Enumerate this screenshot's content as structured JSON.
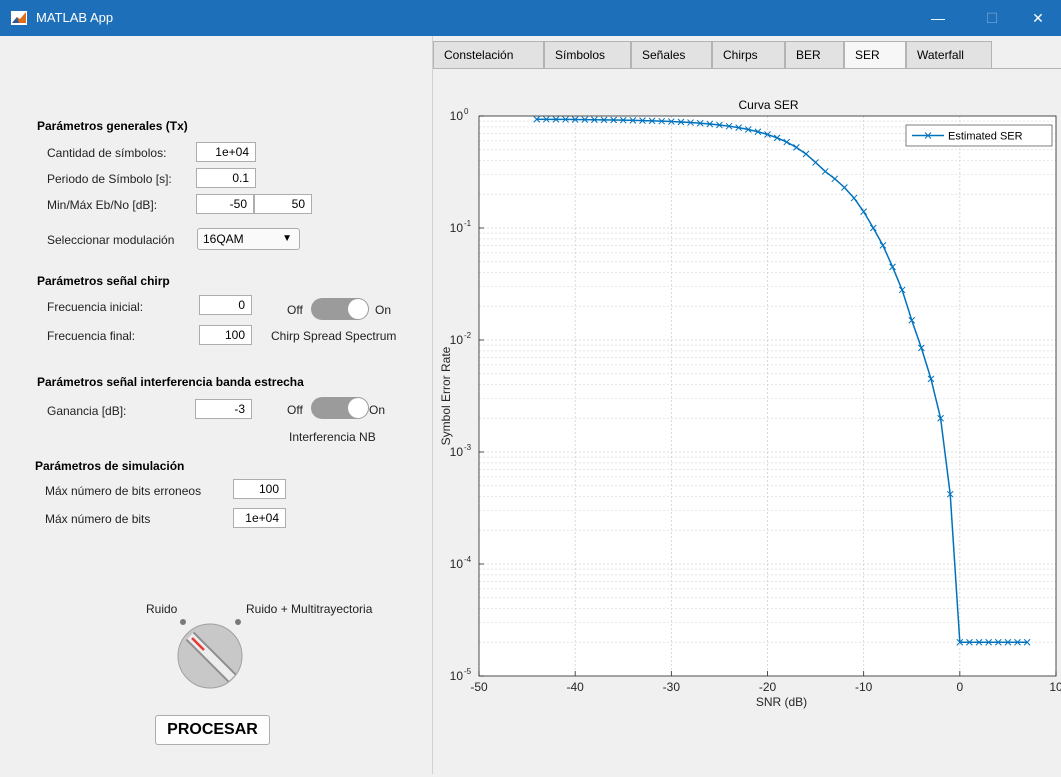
{
  "window": {
    "title": "MATLAB App",
    "minimize_label": "—",
    "maximize_label": "☐",
    "close_label": "✕"
  },
  "general": {
    "heading": "Parámetros generales (Tx)",
    "num_symbols_label": "Cantidad de símbolos:",
    "num_symbols_value": "1e+04",
    "symbol_period_label": "Periodo de Símbolo [s]:",
    "symbol_period_value": "0.1",
    "ebno_label": "Min/Máx Eb/No [dB]:",
    "ebno_min": "-50",
    "ebno_max": "50",
    "modulation_label": "Seleccionar modulación",
    "modulation_value": "16QAM"
  },
  "chirp": {
    "heading": "Parámetros señal chirp",
    "start_freq_label": "Frecuencia inicial:",
    "start_freq_value": "0",
    "end_freq_label": "Frecuencia final:",
    "end_freq_value": "100",
    "switch_off": "Off",
    "switch_on": "On",
    "switch_caption": "Chirp Spread Spectrum",
    "switch_state": "on"
  },
  "interference": {
    "heading": "Parámetros señal interferencia banda estrecha",
    "gain_label": "Ganancia [dB]:",
    "gain_value": "-3",
    "switch_off": "Off",
    "switch_on": "On",
    "switch_caption": "Interferencia NB",
    "switch_state": "on"
  },
  "simulation": {
    "heading": "Parámetros de simulación",
    "max_errors_label": "Máx número de bits erroneos",
    "max_errors_value": "100",
    "max_bits_label": "Máx número de bits",
    "max_bits_value": "1e+04"
  },
  "knob": {
    "left_label": "Ruido",
    "right_label": "Ruido + Multitrayectoria",
    "selected": "Ruido"
  },
  "process_button": "PROCESAR",
  "tabs": [
    "Constelación",
    "Símbolos",
    "Señales",
    "Chirps",
    "BER",
    "SER",
    "Waterfall"
  ],
  "active_tab": "SER",
  "chart_data": {
    "type": "line",
    "title": "Curva SER",
    "xlabel": "SNR (dB)",
    "ylabel": "Symbol Error Rate",
    "xlim": [
      -50,
      100
    ],
    "ylim": [
      1e-05,
      1
    ],
    "yscale": "log",
    "grid": true,
    "x_ticks": [
      "-50",
      "-40",
      "-30",
      "-20",
      "-10",
      "0",
      "10"
    ],
    "y_ticks": [
      {
        "base": "10",
        "exp": "0"
      },
      {
        "base": "10",
        "exp": "-1"
      },
      {
        "base": "10",
        "exp": "-2"
      },
      {
        "base": "10",
        "exp": "-3"
      },
      {
        "base": "10",
        "exp": "-4"
      },
      {
        "base": "10",
        "exp": "-5"
      }
    ],
    "legend_position": "top-right",
    "series": [
      {
        "name": "Estimated SER",
        "color": "#0072bd",
        "marker": "x",
        "x": [
          -44,
          -43,
          -42,
          -41,
          -40,
          -39,
          -38,
          -37,
          -36,
          -35,
          -34,
          -33,
          -32,
          -31,
          -30,
          -29,
          -28,
          -27,
          -26,
          -25,
          -24,
          -23,
          -22,
          -21,
          -20,
          -19,
          -18,
          -17,
          -16,
          -15,
          -14,
          -13,
          -12,
          -11,
          -10,
          -9,
          -8,
          -7,
          -6,
          -5,
          -4,
          -3,
          -2,
          -1,
          0,
          1,
          2,
          3,
          4,
          5,
          6,
          7
        ],
        "y": [
          0.935,
          0.934,
          0.933,
          0.932,
          0.93,
          0.928,
          0.926,
          0.924,
          0.921,
          0.918,
          0.914,
          0.91,
          0.905,
          0.899,
          0.892,
          0.884,
          0.874,
          0.862,
          0.848,
          0.831,
          0.811,
          0.787,
          0.758,
          0.724,
          0.684,
          0.638,
          0.585,
          0.525,
          0.458,
          0.385,
          0.32,
          0.275,
          0.23,
          0.185,
          0.14,
          0.1,
          0.07,
          0.045,
          0.028,
          0.015,
          0.0085,
          0.0045,
          0.002,
          0.00042,
          2e-05,
          2e-05,
          2e-05,
          2e-05,
          2e-05,
          2e-05,
          2e-05,
          2e-05
        ]
      }
    ]
  }
}
